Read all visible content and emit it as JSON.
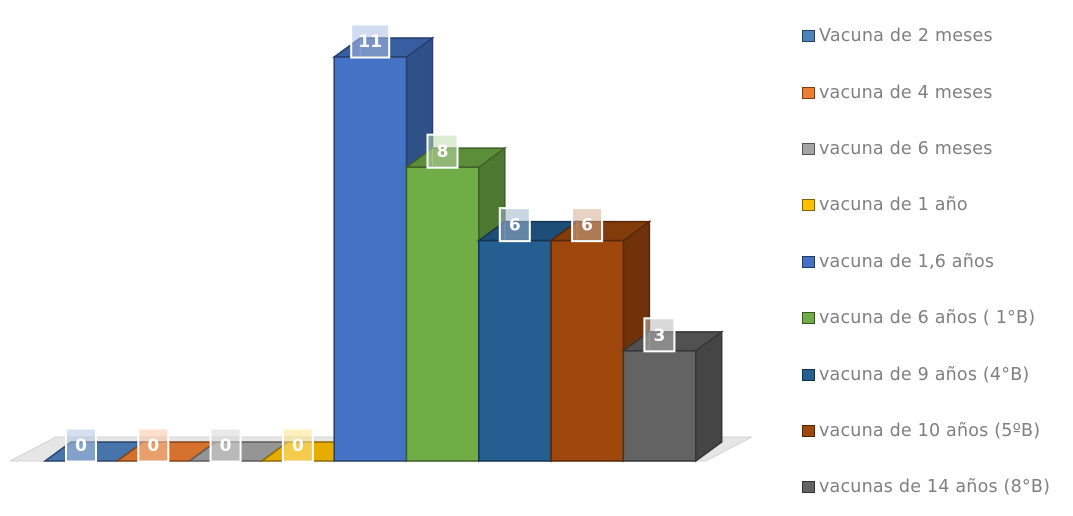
{
  "chart_data": {
    "type": "bar",
    "categories": [
      "Vacuna de 2 meses",
      "vacuna de 4 meses",
      "vacuna de 6 meses",
      "vacuna de 1 año",
      "vacuna de 1,6 años",
      "vacuna de 6 años ( 1°B)",
      "vacuna de 9 años (4°B)",
      "vacuna de 10 años (5ºB)",
      "vacunas de 14 años (8°B)"
    ],
    "values": [
      0,
      0,
      0,
      0,
      11,
      8,
      6,
      6,
      3
    ],
    "colors": [
      "#4f81bd",
      "#ed7d31",
      "#a5a5a5",
      "#ffc000",
      "#4472c4",
      "#70ad47",
      "#255e91",
      "#9e480e",
      "#636363"
    ],
    "ylim": [
      0,
      11
    ],
    "grid": false,
    "legend_position": "right",
    "data_labels": true,
    "style": "3d-column"
  }
}
